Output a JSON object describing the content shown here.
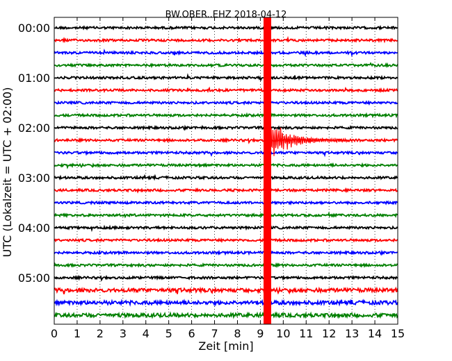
{
  "chart_data": {
    "type": "line",
    "title": "BW.OBER..EHZ 2018-04-12",
    "xlabel": "Zeit  [min]",
    "ylabel": "UTC (Lokalzeit = UTC + 02:00)",
    "xlim": [
      0,
      15
    ],
    "x_ticks": [
      "0",
      "1",
      "2",
      "3",
      "4",
      "5",
      "6",
      "7",
      "8",
      "9",
      "10",
      "11",
      "12",
      "13",
      "14",
      "15"
    ],
    "y_ticks": [
      "00:00",
      "01:00",
      "02:00",
      "03:00",
      "04:00",
      "05:00"
    ],
    "grid": true,
    "trace_interval_min": 15,
    "trace_colors": [
      "#000000",
      "#ff0000",
      "#0000ff",
      "#008000"
    ],
    "series": [
      {
        "start": "00:00",
        "color": "#000000"
      },
      {
        "start": "00:15",
        "color": "#ff0000"
      },
      {
        "start": "00:30",
        "color": "#0000ff"
      },
      {
        "start": "00:45",
        "color": "#008000"
      },
      {
        "start": "01:00",
        "color": "#000000"
      },
      {
        "start": "01:15",
        "color": "#ff0000"
      },
      {
        "start": "01:30",
        "color": "#0000ff"
      },
      {
        "start": "01:45",
        "color": "#008000"
      },
      {
        "start": "02:00",
        "color": "#000000"
      },
      {
        "start": "02:15",
        "color": "#ff0000"
      },
      {
        "start": "02:30",
        "color": "#0000ff"
      },
      {
        "start": "02:45",
        "color": "#008000"
      },
      {
        "start": "03:00",
        "color": "#000000"
      },
      {
        "start": "03:15",
        "color": "#ff0000"
      },
      {
        "start": "03:30",
        "color": "#0000ff"
      },
      {
        "start": "03:45",
        "color": "#008000"
      },
      {
        "start": "04:00",
        "color": "#000000"
      },
      {
        "start": "04:15",
        "color": "#ff0000"
      },
      {
        "start": "04:30",
        "color": "#0000ff"
      },
      {
        "start": "04:45",
        "color": "#008000"
      },
      {
        "start": "05:00",
        "color": "#000000"
      },
      {
        "start": "05:15",
        "color": "#ff0000"
      },
      {
        "start": "05:30",
        "color": "#0000ff"
      },
      {
        "start": "05:45",
        "color": "#008000"
      }
    ],
    "event": {
      "start": "02:15",
      "onset_min": 9.2,
      "color": "#ff0000"
    }
  }
}
